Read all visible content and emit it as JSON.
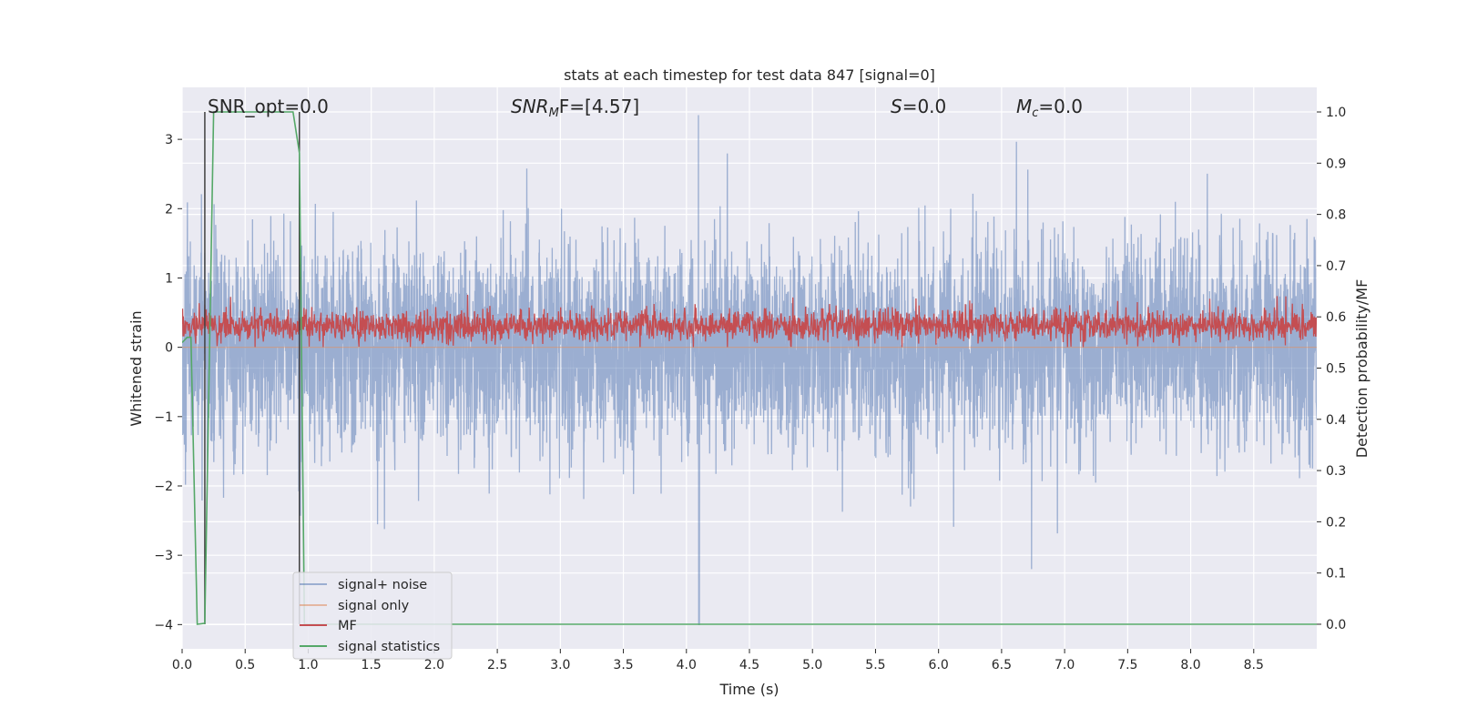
{
  "chart_data": {
    "type": "line",
    "title": "stats at each timestep for test data 847 [signal=0]",
    "xlabel": "Time (s)",
    "ylabel_left": "Whitened strain",
    "ylabel_right": "Detection probability/MF",
    "xlim": [
      0.0,
      9.0
    ],
    "ylim_left": [
      -4.35,
      3.75
    ],
    "ylim_right": [
      -0.048,
      1.048
    ],
    "xticks": [
      "0.0",
      "0.5",
      "1.0",
      "1.5",
      "2.0",
      "2.5",
      "3.0",
      "3.5",
      "4.0",
      "4.5",
      "5.0",
      "5.5",
      "6.0",
      "6.5",
      "7.0",
      "7.5",
      "8.0",
      "8.5"
    ],
    "yticks_left": [
      "−4",
      "−3",
      "−2",
      "−1",
      "0",
      "1",
      "2",
      "3"
    ],
    "yticks_right": [
      "0.0",
      "0.1",
      "0.2",
      "0.3",
      "0.4",
      "0.5",
      "0.6",
      "0.7",
      "0.8",
      "0.9",
      "1.0"
    ],
    "grid": true,
    "legend_position": "lower-left",
    "annotations": {
      "snr_opt": "SNR_opt=0.0",
      "snr_mf_base": "SNR",
      "snr_mf_sub": "M",
      "snr_mf_rest": "F=[4.57]",
      "s_var": "S",
      "s_rest": "=0.0",
      "mc_var": "M",
      "mc_sub": "c",
      "mc_rest": "=0.0"
    },
    "vlines_x": [
      0.18,
      0.93
    ],
    "series": [
      {
        "name": "signal+ noise",
        "color": "#4c72b0",
        "axis": "left",
        "description_range": [
          -4.0,
          3.4
        ],
        "typical_band": [
          -1.5,
          1.6
        ]
      },
      {
        "name": "signal only",
        "color": "#dd8452",
        "axis": "left",
        "values_constant": 0.0
      },
      {
        "name": "MF",
        "color": "#c44e52",
        "axis": "left",
        "typical_band": [
          0.0,
          0.55
        ],
        "peak": 1.0
      },
      {
        "name": "signal statistics",
        "color": "#55a868",
        "axis": "right",
        "x": [
          0.0,
          0.04,
          0.07,
          0.12,
          0.18,
          0.25,
          0.3,
          0.8,
          0.88,
          0.93,
          0.97,
          1.0,
          9.0
        ],
        "values": [
          0.55,
          0.56,
          0.56,
          0.0,
          0.002,
          1.0,
          1.0,
          1.0,
          1.0,
          0.92,
          0.0,
          0.0,
          0.0
        ]
      }
    ],
    "colors": {
      "background": "#eaeaf2",
      "grid": "#ffffff",
      "vline": "#404040"
    }
  }
}
